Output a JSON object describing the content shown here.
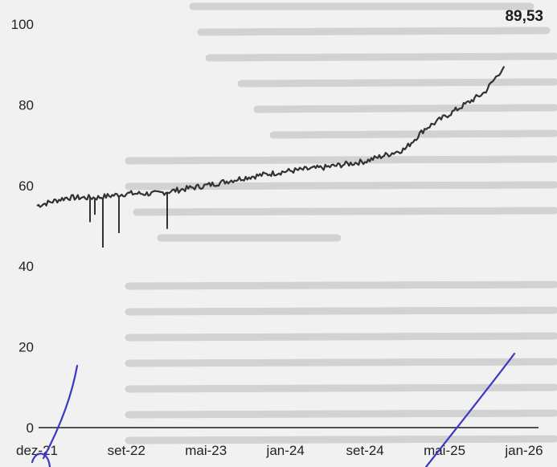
{
  "chart_data": {
    "type": "line",
    "title": "",
    "xlabel": "",
    "ylabel": "",
    "ylim": [
      0,
      100
    ],
    "y_ticks": [
      "100",
      "80",
      "60",
      "40",
      "20",
      "0"
    ],
    "x_ticks": [
      "dez-21",
      "set-22",
      "mai-23",
      "jan-24",
      "set-24",
      "mai-25",
      "jan-26"
    ],
    "last_value_label": "89,53",
    "grid": false,
    "series": [
      {
        "name": "",
        "x": [
          "dez-21",
          "mar-22",
          "jun-22",
          "set-22",
          "dez-22",
          "mai-23",
          "set-23",
          "jan-24",
          "mai-24",
          "set-24",
          "jan-25",
          "mar-25",
          "mai-25",
          "set-25",
          "nov-25"
        ],
        "y": [
          55,
          57,
          57,
          58,
          58,
          60,
          62,
          63.5,
          64.5,
          66,
          69,
          74,
          77,
          83,
          89.53
        ]
      }
    ],
    "colors": {
      "series": "#2f3430",
      "axis": "#1c1c1c",
      "pen_marks": "#3b37c7"
    }
  }
}
